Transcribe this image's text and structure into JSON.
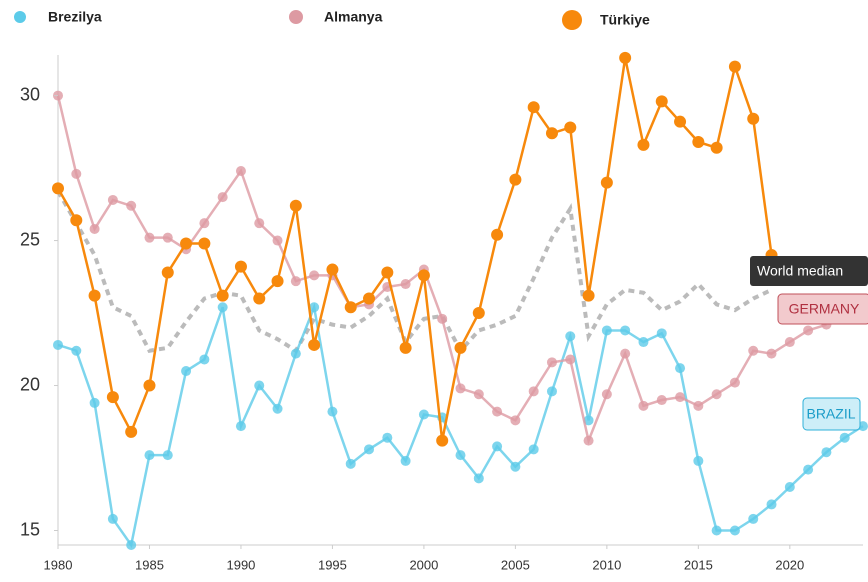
{
  "chart_data": {
    "type": "line",
    "x": [
      1980,
      1981,
      1982,
      1983,
      1984,
      1985,
      1986,
      1987,
      1988,
      1989,
      1990,
      1991,
      1992,
      1993,
      1994,
      1995,
      1996,
      1997,
      1998,
      1999,
      2000,
      2001,
      2002,
      2003,
      2004,
      2005,
      2006,
      2007,
      2008,
      2009,
      2010,
      2011,
      2012,
      2013,
      2014,
      2015,
      2016,
      2017,
      2018,
      2019,
      2020,
      2021,
      2022,
      2023,
      2024
    ],
    "series": [
      {
        "name": "Brezilya",
        "color": "#5ccbe9",
        "values": [
          21.4,
          21.2,
          19.4,
          15.4,
          14.5,
          17.6,
          17.6,
          20.5,
          20.9,
          22.7,
          18.6,
          20.0,
          19.2,
          21.1,
          22.7,
          19.1,
          17.3,
          17.8,
          18.2,
          17.4,
          19.0,
          18.9,
          17.6,
          16.8,
          17.9,
          17.2,
          17.8,
          19.8,
          21.7,
          18.8,
          21.9,
          21.9,
          21.5,
          21.8,
          20.6,
          17.4,
          15.0,
          15.0,
          15.4,
          15.9,
          16.5,
          17.1,
          17.7,
          18.2,
          18.6
        ]
      },
      {
        "name": "Almanya",
        "color": "#dd9aa2",
        "values": [
          30.0,
          27.3,
          25.4,
          26.4,
          26.2,
          25.1,
          25.1,
          24.7,
          25.6,
          26.5,
          27.4,
          25.6,
          25.0,
          23.6,
          23.8,
          23.8,
          22.7,
          22.8,
          23.4,
          23.5,
          24.0,
          22.3,
          19.9,
          19.7,
          19.1,
          18.8,
          19.8,
          20.8,
          20.9,
          18.1,
          19.7,
          21.1,
          19.3,
          19.5,
          19.6,
          19.3,
          19.7,
          20.1,
          21.2,
          21.1,
          21.5,
          21.9,
          22.1,
          null,
          null
        ]
      },
      {
        "name": "Türkiye",
        "color": "#f7890c",
        "values": [
          26.8,
          25.7,
          23.1,
          19.6,
          18.4,
          20.0,
          23.9,
          24.9,
          24.9,
          23.1,
          24.1,
          23.0,
          23.6,
          26.2,
          21.4,
          24.0,
          22.7,
          23.0,
          23.9,
          21.3,
          23.8,
          18.1,
          21.3,
          22.5,
          25.2,
          27.1,
          29.6,
          28.7,
          28.9,
          23.1,
          27.0,
          31.3,
          28.3,
          29.8,
          29.1,
          28.4,
          28.2,
          31.0,
          29.2,
          24.5,
          null,
          null,
          null,
          null,
          null
        ]
      }
    ],
    "median": {
      "name": "World median",
      "color": "#bbbbbb",
      "values": [
        26.7,
        25.6,
        24.5,
        22.7,
        22.4,
        21.2,
        21.3,
        22.2,
        23.0,
        23.2,
        23.1,
        21.9,
        21.6,
        21.2,
        22.3,
        22.1,
        22.0,
        22.4,
        23.0,
        21.5,
        22.3,
        22.4,
        21.2,
        21.9,
        22.1,
        22.4,
        23.7,
        25.1,
        26.1,
        21.7,
        22.8,
        23.3,
        23.2,
        22.6,
        22.9,
        23.5,
        22.8,
        22.6,
        23.0,
        23.3,
        null,
        null,
        null,
        null,
        null
      ]
    },
    "annotations": [
      "GERMANY",
      "BRAZIL"
    ],
    "xlim": [
      1980,
      2024
    ],
    "xticks": [
      1980,
      1985,
      1990,
      1995,
      2000,
      2005,
      2010,
      2015,
      2020
    ],
    "ylim": [
      14.5,
      31.4
    ],
    "yticks": [
      15,
      20,
      25,
      30
    ],
    "grid": false
  }
}
